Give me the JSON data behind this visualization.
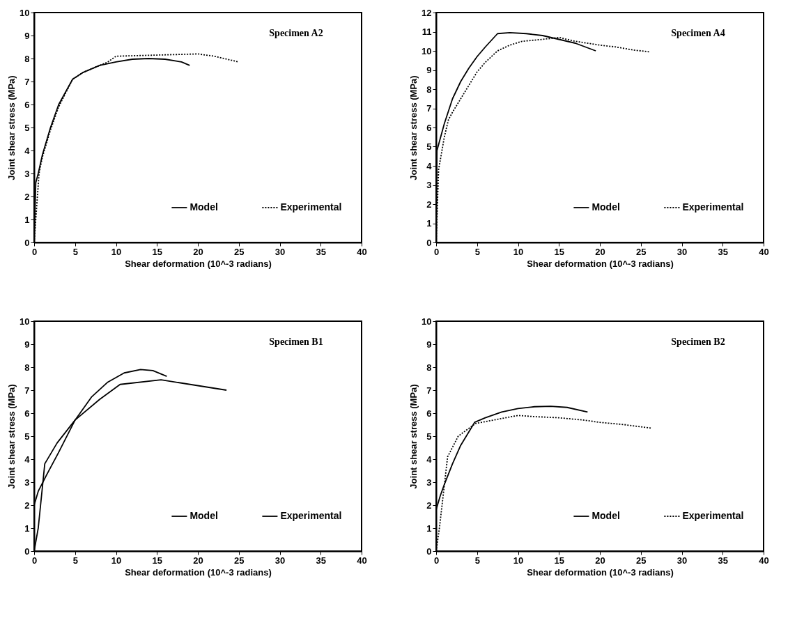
{
  "chart_data": [
    {
      "type": "line",
      "annotations": [
        "Specimen A2"
      ],
      "xlabel": "Shear deformation (10^-3 radians)",
      "ylabel": "Joint shear stress (MPa)",
      "xlim": [
        0,
        40
      ],
      "xticks": [
        0,
        5,
        10,
        15,
        20,
        25,
        30,
        35,
        40
      ],
      "ylim": [
        0,
        10
      ],
      "yticks": [
        0,
        1,
        2,
        3,
        4,
        5,
        6,
        7,
        8,
        9,
        10
      ],
      "grid": false,
      "legend": "bottom right",
      "series": [
        {
          "name": "Model",
          "color": "#000000",
          "line_style": "solid",
          "x": [
            0,
            0.2,
            0.5,
            1,
            2,
            3,
            4.7,
            6,
            8,
            10,
            12,
            14,
            16,
            18,
            19
          ],
          "values": [
            0,
            2.6,
            3,
            3.8,
            5,
            6,
            7.1,
            7.4,
            7.7,
            7.85,
            7.97,
            8,
            7.97,
            7.85,
            7.7
          ]
        },
        {
          "name": "Experimental",
          "color": "#000000",
          "line_style": "dotted",
          "x": [
            0,
            0.3,
            0.6,
            1,
            2,
            3,
            4.7,
            6,
            8,
            9,
            10,
            15,
            20,
            22,
            25
          ],
          "values": [
            0,
            1.5,
            3,
            3.7,
            4.9,
            5.9,
            7.1,
            7.4,
            7.7,
            7.85,
            8.1,
            8.15,
            8.2,
            8.1,
            7.85
          ]
        }
      ]
    },
    {
      "type": "line",
      "annotations": [
        "Specimen A4"
      ],
      "xlabel": "Shear deformation (10^-3 radians)",
      "ylabel": "Joint shear stress (MPa)",
      "xlim": [
        0,
        40
      ],
      "xticks": [
        0,
        5,
        10,
        15,
        20,
        25,
        30,
        35,
        40
      ],
      "ylim": [
        0,
        12
      ],
      "yticks": [
        0,
        1,
        2,
        3,
        4,
        5,
        6,
        7,
        8,
        9,
        10,
        11,
        12
      ],
      "grid": false,
      "legend": "bottom right",
      "series": [
        {
          "name": "Model",
          "color": "#000000",
          "line_style": "solid",
          "x": [
            0,
            0.1,
            1,
            2,
            3,
            4,
            5,
            6,
            7.5,
            9,
            11,
            13,
            15,
            17,
            19.5
          ],
          "values": [
            0,
            4.8,
            6.2,
            7.5,
            8.4,
            9.1,
            9.7,
            10.2,
            10.9,
            10.95,
            10.9,
            10.8,
            10.6,
            10.4,
            10
          ]
        },
        {
          "name": "Experimental",
          "color": "#000000",
          "line_style": "dotted",
          "x": [
            0,
            0.3,
            1,
            1.5,
            2,
            3,
            4,
            5,
            6,
            7.5,
            9,
            10.5,
            13,
            15,
            17,
            20,
            22,
            24,
            26
          ],
          "values": [
            0,
            3.8,
            5.5,
            6.4,
            6.8,
            7.5,
            8.2,
            8.9,
            9.4,
            10,
            10.3,
            10.5,
            10.6,
            10.7,
            10.5,
            10.3,
            10.2,
            10.05,
            9.95
          ]
        }
      ]
    },
    {
      "type": "line",
      "annotations": [
        "Specimen B1"
      ],
      "xlabel": "Shear deformation (10^-3 radians)",
      "ylabel": "Joint shear stress (MPa)",
      "xlim": [
        0,
        40
      ],
      "xticks": [
        0,
        5,
        10,
        15,
        20,
        25,
        30,
        35,
        40
      ],
      "ylim": [
        0,
        10
      ],
      "yticks": [
        0,
        1,
        2,
        3,
        4,
        5,
        6,
        7,
        8,
        9,
        10
      ],
      "grid": false,
      "legend": "bottom right",
      "series": [
        {
          "name": "Model",
          "color": "#000000",
          "line_style": "solid",
          "x": [
            0,
            0.5,
            1.5,
            3,
            5,
            7,
            9,
            11,
            13,
            14.5,
            16.2
          ],
          "values": [
            2,
            2.6,
            3.3,
            4.3,
            5.7,
            6.7,
            7.35,
            7.75,
            7.9,
            7.85,
            7.6
          ]
        },
        {
          "name": "Experimental",
          "color": "#000000",
          "line_style": "solid",
          "x": [
            0,
            0.5,
            1.3,
            2.8,
            5,
            8,
            10.5,
            15.5,
            23.5
          ],
          "values": [
            0,
            1,
            3.8,
            4.7,
            5.7,
            6.6,
            7.25,
            7.45,
            7
          ]
        }
      ]
    },
    {
      "type": "line",
      "annotations": [
        "Specimen B2"
      ],
      "xlabel": "Shear deformation (10^-3 radians)",
      "ylabel": "Joint shear stress (MPa)",
      "xlim": [
        0,
        40
      ],
      "xticks": [
        0,
        5,
        10,
        15,
        20,
        25,
        30,
        35,
        40
      ],
      "ylim": [
        0,
        10
      ],
      "yticks": [
        0,
        1,
        2,
        3,
        4,
        5,
        6,
        7,
        8,
        9,
        10
      ],
      "grid": false,
      "legend": "bottom right",
      "series": [
        {
          "name": "Model",
          "color": "#000000",
          "line_style": "solid",
          "x": [
            0,
            0.5,
            1,
            2,
            3,
            4.7,
            6,
            8,
            10,
            12,
            14,
            16,
            18.5
          ],
          "values": [
            1.8,
            2.4,
            2.9,
            3.8,
            4.6,
            5.6,
            5.8,
            6.05,
            6.2,
            6.28,
            6.3,
            6.25,
            6.05
          ]
        },
        {
          "name": "Experimental",
          "color": "#000000",
          "line_style": "dotted",
          "x": [
            0,
            0.4,
            1.4,
            2.7,
            4.8,
            7,
            10,
            12,
            15,
            18,
            20,
            23,
            26.3
          ],
          "values": [
            0,
            1,
            4.1,
            5,
            5.55,
            5.7,
            5.9,
            5.85,
            5.8,
            5.7,
            5.6,
            5.5,
            5.35
          ]
        }
      ]
    }
  ]
}
